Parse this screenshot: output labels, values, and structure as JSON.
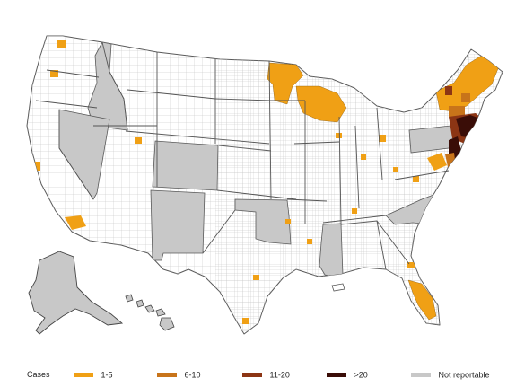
{
  "legend": {
    "title": "Cases",
    "items": [
      {
        "label": "1-5",
        "color": "#f0a015"
      },
      {
        "label": "6-10",
        "color": "#c8741a"
      },
      {
        "label": "11-20",
        "color": "#8c3514"
      },
      {
        "label": ">20",
        "color": "#3a0d07"
      },
      {
        "label": "Not reportable",
        "color": "#c8c8c8"
      }
    ]
  },
  "map": {
    "not_reportable_states": [
      "Idaho",
      "Nevada",
      "Colorado",
      "New Mexico",
      "Oklahoma",
      "Mississippi",
      "Pennsylvania",
      "North Carolina",
      "Alaska",
      "Hawaii"
    ],
    "county_colors": {
      "low": "#f0a015",
      "medium": "#c8741a",
      "high": "#8c3514",
      "very_high": "#3a0d07",
      "none": "#ffffff"
    }
  }
}
